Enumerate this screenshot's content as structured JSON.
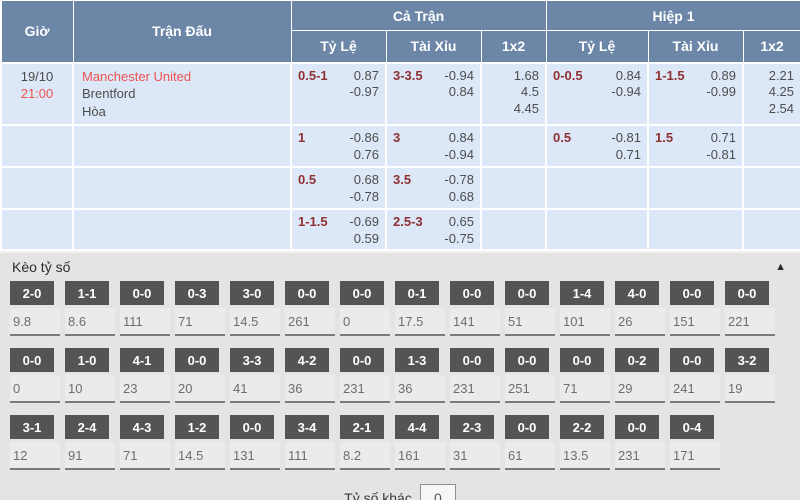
{
  "colors": {
    "header_bg": "#6c86a8",
    "row_bg": "#dce8f8",
    "line_accent": "#8f3131",
    "home_team_red": "#ef5350",
    "time_red": "#f0554e",
    "score_box_bg": "#545454",
    "section_bg": "#e4e4e4"
  },
  "odds_table": {
    "headers": {
      "time": "Giờ",
      "match": "Trận Đấu",
      "full_match": "Cả Trận",
      "first_half": "Hiệp 1",
      "handicap": "Tỷ Lệ",
      "over_under": "Tài Xỉu",
      "one_x_two": "1x2"
    },
    "match_info": {
      "date": "19/10",
      "time": "21:00",
      "home": "Manchester United",
      "away": "Brentford",
      "draw": "Hòa"
    },
    "rows": [
      {
        "ft_handicap": {
          "line": "0.5-1",
          "odds": [
            "0.87",
            "-0.97"
          ]
        },
        "ft_over_under": {
          "line": "3-3.5",
          "odds": [
            "-0.94",
            "0.84"
          ]
        },
        "ft_1x2": [
          "1.68",
          "4.5",
          "4.45"
        ],
        "h1_handicap": {
          "line": "0-0.5",
          "odds": [
            "0.84",
            "-0.94"
          ]
        },
        "h1_over_under": {
          "line": "1-1.5",
          "odds": [
            "0.89",
            "-0.99"
          ]
        },
        "h1_1x2": [
          "2.21",
          "4.25",
          "2.54"
        ]
      },
      {
        "ft_handicap": {
          "line": "1",
          "odds": [
            "-0.86",
            "0.76"
          ]
        },
        "ft_over_under": {
          "line": "3",
          "odds": [
            "0.84",
            "-0.94"
          ]
        },
        "ft_1x2": [],
        "h1_handicap": {
          "line": "0.5",
          "odds": [
            "-0.81",
            "0.71"
          ]
        },
        "h1_over_under": {
          "line": "1.5",
          "odds": [
            "0.71",
            "-0.81"
          ]
        },
        "h1_1x2": []
      },
      {
        "ft_handicap": {
          "line": "0.5",
          "odds": [
            "0.68",
            "-0.78"
          ]
        },
        "ft_over_under": {
          "line": "3.5",
          "odds": [
            "-0.78",
            "0.68"
          ]
        },
        "ft_1x2": [],
        "h1_handicap": null,
        "h1_over_under": null,
        "h1_1x2": []
      },
      {
        "ft_handicap": {
          "line": "1-1.5",
          "odds": [
            "-0.69",
            "0.59"
          ]
        },
        "ft_over_under": {
          "line": "2.5-3",
          "odds": [
            "0.65",
            "-0.75"
          ]
        },
        "ft_1x2": [],
        "h1_handicap": null,
        "h1_over_under": null,
        "h1_1x2": []
      }
    ]
  },
  "score_section": {
    "title": "Kèo tỷ số",
    "collapse_icon": "▲",
    "rows": [
      [
        {
          "score": "2-0",
          "odds": "9.8"
        },
        {
          "score": "1-1",
          "odds": "8.6"
        },
        {
          "score": "0-0",
          "odds": "111"
        },
        {
          "score": "0-3",
          "odds": "71"
        },
        {
          "score": "3-0",
          "odds": "14.5"
        },
        {
          "score": "0-0",
          "odds": "261"
        },
        {
          "score": "0-0",
          "odds": "0"
        },
        {
          "score": "0-1",
          "odds": "17.5"
        },
        {
          "score": "0-0",
          "odds": "141"
        },
        {
          "score": "0-0",
          "odds": "51"
        },
        {
          "score": "1-4",
          "odds": "101"
        },
        {
          "score": "4-0",
          "odds": "26"
        },
        {
          "score": "0-0",
          "odds": "151"
        },
        {
          "score": "0-0",
          "odds": "221"
        }
      ],
      [
        {
          "score": "0-0",
          "odds": "0"
        },
        {
          "score": "1-0",
          "odds": "10"
        },
        {
          "score": "4-1",
          "odds": "23"
        },
        {
          "score": "0-0",
          "odds": "20"
        },
        {
          "score": "3-3",
          "odds": "41"
        },
        {
          "score": "4-2",
          "odds": "36"
        },
        {
          "score": "0-0",
          "odds": "231"
        },
        {
          "score": "1-3",
          "odds": "36"
        },
        {
          "score": "0-0",
          "odds": "231"
        },
        {
          "score": "0-0",
          "odds": "251"
        },
        {
          "score": "0-0",
          "odds": "71"
        },
        {
          "score": "0-2",
          "odds": "29"
        },
        {
          "score": "0-0",
          "odds": "241"
        },
        {
          "score": "3-2",
          "odds": "19"
        }
      ],
      [
        {
          "score": "3-1",
          "odds": "12"
        },
        {
          "score": "2-4",
          "odds": "91"
        },
        {
          "score": "4-3",
          "odds": "71"
        },
        {
          "score": "1-2",
          "odds": "14.5"
        },
        {
          "score": "0-0",
          "odds": "131"
        },
        {
          "score": "3-4",
          "odds": "111"
        },
        {
          "score": "2-1",
          "odds": "8.2"
        },
        {
          "score": "4-4",
          "odds": "161"
        },
        {
          "score": "2-3",
          "odds": "31"
        },
        {
          "score": "0-0",
          "odds": "61"
        },
        {
          "score": "2-2",
          "odds": "13.5"
        },
        {
          "score": "0-0",
          "odds": "231"
        },
        {
          "score": "0-4",
          "odds": "171"
        }
      ]
    ],
    "other_score_label": "Tỷ số khác",
    "other_score_value": "0"
  }
}
